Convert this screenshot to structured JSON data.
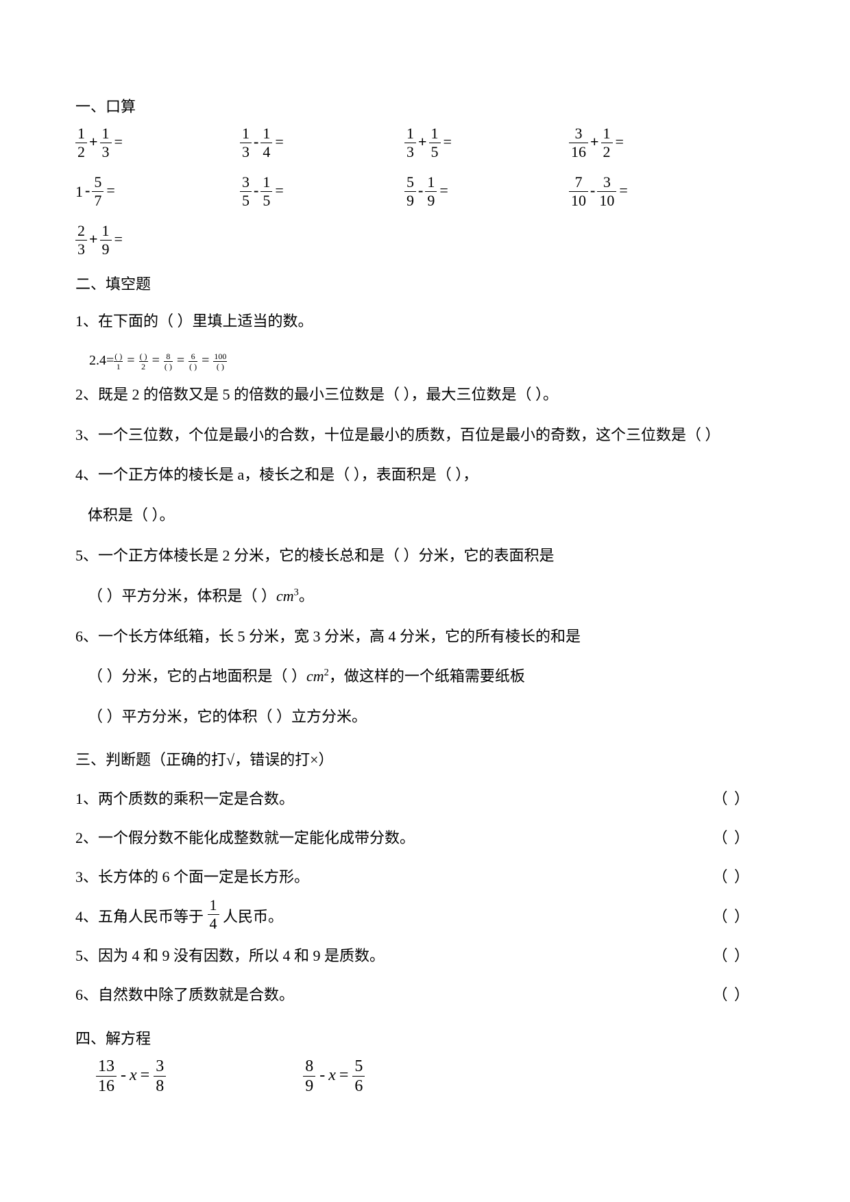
{
  "section1": {
    "title": "一、口算",
    "rows": [
      [
        {
          "l": {
            "n": "1",
            "d": "2"
          },
          "op": "+",
          "r": {
            "n": "1",
            "d": "3"
          }
        },
        {
          "l": {
            "n": "1",
            "d": "3"
          },
          "op": "-",
          "r": {
            "n": "1",
            "d": "4"
          }
        },
        {
          "l": {
            "n": "1",
            "d": "3"
          },
          "op": "+",
          "r": {
            "n": "1",
            "d": "5"
          }
        },
        {
          "l": {
            "n": "3",
            "d": "16"
          },
          "op": "+",
          "r": {
            "n": "1",
            "d": "2"
          }
        }
      ],
      [
        {
          "whole": "1",
          "op": "-",
          "r": {
            "n": "5",
            "d": "7"
          }
        },
        {
          "l": {
            "n": "3",
            "d": "5"
          },
          "op": "-",
          "r": {
            "n": "1",
            "d": "5"
          }
        },
        {
          "l": {
            "n": "5",
            "d": "9"
          },
          "op": "-",
          "r": {
            "n": "1",
            "d": "9"
          }
        },
        {
          "l": {
            "n": "7",
            "d": "10"
          },
          "op": "-",
          "r": {
            "n": "3",
            "d": "10"
          }
        }
      ],
      [
        {
          "l": {
            "n": "2",
            "d": "3"
          },
          "op": "+",
          "r": {
            "n": "1",
            "d": "9"
          }
        }
      ]
    ]
  },
  "section2": {
    "title": "二、填空题",
    "q1": {
      "label": "1、在下面的（ ）里填上适当的数。",
      "text": "2.4= = = = ="
    },
    "smallfracs": [
      {
        "n": "( )",
        "d": "1"
      },
      {
        "n": "( )",
        "d": "2"
      },
      {
        "n": "8",
        "d": "( )"
      },
      {
        "n": "6",
        "d": "( )"
      },
      {
        "n": "100",
        "d": "( )"
      }
    ],
    "q2": "2、既是 2 的倍数又是 5 的倍数的最小三位数是（  ），最大三位数是（  ）。",
    "q3": "3、一个三位数，个位是最小的合数，十位是最小的质数，百位是最小的奇数，这个三位数是（   ）",
    "q4a": "4、一个正方体的棱长是 a，棱长之和是（  ），表面积是（  ），",
    "q4b": "体积是（  ）。",
    "q5a": "5、一个正方体棱长是 2 分米，它的棱长总和是（   ）分米，它的表面积是",
    "q5b_pre": "（   ）平方分米，体积是（   ）",
    "q5b_unit_base": "cm",
    "q5b_unit_sup": "3",
    "q5b_post": "。",
    "q6a": "6、一个长方体纸箱，长 5 分米，宽 3 分米，高 4 分米，它的所有棱长的和是",
    "q6b_pre": "（   ）分米，它的占地面积是（   ）",
    "q6b_unit_base": "cm",
    "q6b_unit_sup": "2",
    "q6b_post": "，做这样的一个纸箱需要纸板",
    "q6c": "（   ）平方分米，它的体积（   ）立方分米。"
  },
  "section3": {
    "title": "三、判断题（正确的打√，错误的打×）",
    "q1": "1、两个质数的乘积一定是合数。",
    "q2": "2、一个假分数不能化成整数就一定能化成带分数。",
    "q3_pre": "3、长方体的 6 个面一定是长方形。",
    "q4_pre": "4、五角人民币等于",
    "q4_post": "人民币。",
    "q5": "5、因为 4 和 9 没有因数，所以 4 和 9 是质数。",
    "q6": "6、自然数中除了质数就是合数。",
    "paren": "（     ）",
    "frac4": {
      "n": "1",
      "d": "4"
    }
  },
  "section4": {
    "title": "四、解方程",
    "eq1": {
      "l": {
        "n": "13",
        "d": "16"
      },
      "r": {
        "n": "3",
        "d": "8"
      }
    },
    "eq2": {
      "l": {
        "n": "8",
        "d": "9"
      },
      "r": {
        "n": "5",
        "d": "6"
      }
    }
  }
}
